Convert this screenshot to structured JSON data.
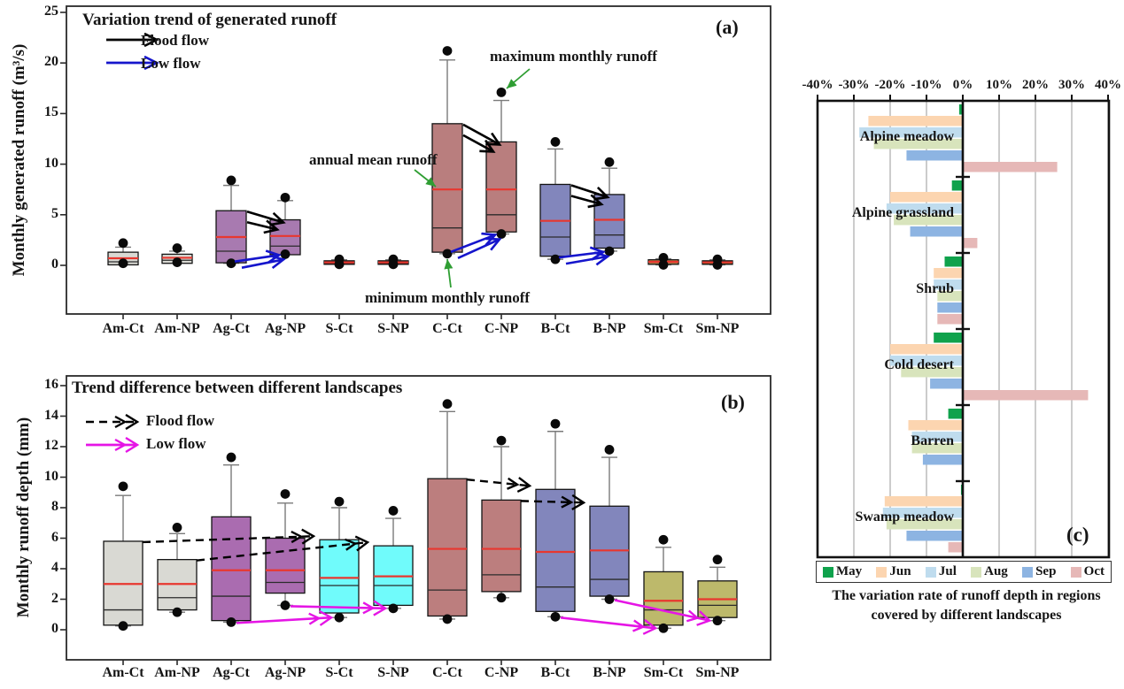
{
  "chart_data": [
    {
      "id": "a",
      "type": "boxplot",
      "panel_label": "(a)",
      "title": "Variation trend of generated runoff",
      "ylabel": "Monthly generated runoff (m³/s)",
      "ylim": [
        -4.8,
        25.5
      ],
      "yticks": [
        0,
        5,
        10,
        15,
        20,
        25
      ],
      "legend": {
        "flood": "Flood flow",
        "low": "Low flow"
      },
      "legend_colors": {
        "flood": "#000000",
        "low": "#1515cc"
      },
      "annotations": {
        "max": "maximum monthly runoff",
        "mean": "annual mean runoff",
        "min": "minimum monthly runoff"
      },
      "categories": [
        "Am-Ct",
        "Am-NP",
        "Ag-Ct",
        "Ag-NP",
        "S-Ct",
        "S-NP",
        "C-Ct",
        "C-NP",
        "B-Ct",
        "B-NP",
        "Sm-Ct",
        "Sm-NP"
      ],
      "boxes": [
        {
          "cat": "Am-Ct",
          "color": "#d9d9d3",
          "q1": 0.05,
          "median": 0.35,
          "mean": 0.7,
          "q3": 1.3,
          "whisker_high": 1.8,
          "dot_high": 2.2,
          "dot_low": 0.2
        },
        {
          "cat": "Am-NP",
          "color": "#d9d9d3",
          "q1": 0.2,
          "median": 0.5,
          "mean": 0.75,
          "q3": 1.1,
          "whisker_high": 1.4,
          "dot_high": 1.7,
          "dot_low": 0.3
        },
        {
          "cat": "Ag-Ct",
          "color": "#a87ab0",
          "q1": 0.25,
          "median": 1.4,
          "mean": 2.8,
          "q3": 5.4,
          "whisker_high": 7.9,
          "dot_high": 8.4,
          "dot_low": 0.2
        },
        {
          "cat": "Ag-NP",
          "color": "#a87ab0",
          "q1": 1.05,
          "median": 1.9,
          "mean": 2.9,
          "q3": 4.5,
          "whisker_high": 6.4,
          "dot_high": 6.7,
          "dot_low": 1.1
        },
        {
          "cat": "S-Ct",
          "color": "#8f1f1f",
          "q1": 0.1,
          "median": 0.25,
          "mean": 0.3,
          "q3": 0.45,
          "whisker_high": 0.55,
          "dot_high": 0.6,
          "dot_low": 0.1
        },
        {
          "cat": "S-NP",
          "color": "#8f1f1f",
          "q1": 0.1,
          "median": 0.25,
          "mean": 0.3,
          "q3": 0.45,
          "whisker_high": 0.55,
          "dot_high": 0.6,
          "dot_low": 0.1
        },
        {
          "cat": "C-Ct",
          "color": "#b97e7e",
          "q1": 1.3,
          "median": 3.7,
          "mean": 7.5,
          "q3": 14.0,
          "whisker_high": 20.3,
          "dot_high": 21.2,
          "dot_low": 1.15
        },
        {
          "cat": "C-NP",
          "color": "#b97e7e",
          "q1": 3.3,
          "median": 5.0,
          "mean": 7.5,
          "q3": 12.2,
          "whisker_high": 16.3,
          "dot_high": 17.1,
          "dot_low": 3.1
        },
        {
          "cat": "B-Ct",
          "color": "#8286bc",
          "q1": 0.9,
          "median": 2.8,
          "mean": 4.4,
          "q3": 8.0,
          "whisker_high": 11.5,
          "dot_high": 12.2,
          "dot_low": 0.6
        },
        {
          "cat": "B-NP",
          "color": "#8286bc",
          "q1": 1.7,
          "median": 3.0,
          "mean": 4.5,
          "q3": 7.0,
          "whisker_high": 9.6,
          "dot_high": 10.2,
          "dot_low": 1.4
        },
        {
          "cat": "Sm-Ct",
          "color": "#d29650",
          "q1": 0.1,
          "median": 0.3,
          "mean": 0.35,
          "q3": 0.55,
          "whisker_high": 0.65,
          "dot_high": 0.75,
          "dot_low": 0.05
        },
        {
          "cat": "Sm-NP",
          "color": "#8d5524",
          "q1": 0.1,
          "median": 0.3,
          "mean": 0.3,
          "q3": 0.45,
          "whisker_high": 0.55,
          "dot_high": 0.6,
          "dot_low": 0.05
        }
      ],
      "flood_arrows": [
        [
          "Ag-Ct",
          "Ag-NP"
        ],
        [
          "C-Ct",
          "C-NP"
        ],
        [
          "B-Ct",
          "B-NP"
        ]
      ],
      "low_arrows": [
        [
          "Ag-Ct",
          "Ag-NP"
        ],
        [
          "C-Ct",
          "C-NP"
        ],
        [
          "B-Ct",
          "B-NP"
        ]
      ]
    },
    {
      "id": "b",
      "type": "boxplot",
      "panel_label": "(b)",
      "title": "Trend difference between different landscapes",
      "ylabel": "Monthly runoff depth (mm)",
      "ylim": [
        -2,
        16.6
      ],
      "yticks": [
        0,
        2,
        4,
        6,
        8,
        10,
        12,
        14,
        16
      ],
      "legend": {
        "flood": "Flood flow",
        "low": "Low flow"
      },
      "legend_colors": {
        "flood": "#000000",
        "low": "#e515e5"
      },
      "categories": [
        "Am-Ct",
        "Am-NP",
        "Ag-Ct",
        "Ag-NP",
        "S-Ct",
        "S-NP",
        "C-Ct",
        "C-NP",
        "B-Ct",
        "B-NP",
        "Sm-Ct",
        "Sm-NP"
      ],
      "boxes": [
        {
          "cat": "Am-Ct",
          "color": "#d9d9d3",
          "q1": 0.3,
          "median": 1.3,
          "mean": 3.0,
          "q3": 5.8,
          "whisker_high": 8.8,
          "dot_high": 9.4,
          "dot_low": 0.25
        },
        {
          "cat": "Am-NP",
          "color": "#d9d9d3",
          "q1": 1.3,
          "median": 2.1,
          "mean": 3.0,
          "q3": 4.6,
          "whisker_high": 6.3,
          "dot_high": 6.7,
          "dot_low": 1.15
        },
        {
          "cat": "Ag-Ct",
          "color": "#aa6cb0",
          "q1": 0.6,
          "median": 2.2,
          "mean": 3.9,
          "q3": 7.4,
          "whisker_high": 10.8,
          "dot_high": 11.3,
          "dot_low": 0.5
        },
        {
          "cat": "Ag-NP",
          "color": "#aa6cb0",
          "q1": 2.4,
          "median": 3.1,
          "mean": 3.9,
          "q3": 6.0,
          "whisker_high": 8.3,
          "dot_high": 8.9,
          "dot_low": 1.6
        },
        {
          "cat": "S-Ct",
          "color": "#70fbfb",
          "q1": 1.1,
          "median": 2.9,
          "mean": 3.4,
          "q3": 5.9,
          "whisker_high": 8.0,
          "dot_high": 8.4,
          "dot_low": 0.8
        },
        {
          "cat": "S-NP",
          "color": "#70fbfb",
          "q1": 1.6,
          "median": 2.9,
          "mean": 3.5,
          "q3": 5.5,
          "whisker_high": 7.3,
          "dot_high": 7.8,
          "dot_low": 1.4
        },
        {
          "cat": "C-Ct",
          "color": "#bc7e7e",
          "q1": 0.9,
          "median": 2.6,
          "mean": 5.3,
          "q3": 9.9,
          "whisker_high": 14.3,
          "dot_high": 14.8,
          "dot_low": 0.7
        },
        {
          "cat": "C-NP",
          "color": "#bc7e7e",
          "q1": 2.5,
          "median": 3.6,
          "mean": 5.3,
          "q3": 8.5,
          "whisker_high": 12.0,
          "dot_high": 12.4,
          "dot_low": 2.1
        },
        {
          "cat": "B-Ct",
          "color": "#8286bc",
          "q1": 1.2,
          "median": 2.8,
          "mean": 5.1,
          "q3": 9.2,
          "whisker_high": 13.0,
          "dot_high": 13.5,
          "dot_low": 0.85
        },
        {
          "cat": "B-NP",
          "color": "#8286bc",
          "q1": 2.2,
          "median": 3.3,
          "mean": 5.2,
          "q3": 8.1,
          "whisker_high": 11.3,
          "dot_high": 11.8,
          "dot_low": 2.0
        },
        {
          "cat": "Sm-Ct",
          "color": "#bdb96b",
          "q1": 0.3,
          "median": 1.3,
          "mean": 1.9,
          "q3": 3.8,
          "whisker_high": 5.4,
          "dot_high": 5.9,
          "dot_low": 0.1
        },
        {
          "cat": "Sm-NP",
          "color": "#bdb96b",
          "q1": 0.8,
          "median": 1.6,
          "mean": 2.0,
          "q3": 3.2,
          "whisker_high": 4.1,
          "dot_high": 4.6,
          "dot_low": 0.6
        }
      ],
      "flood_arrows": [
        [
          "Am-Ct",
          "S-Ct"
        ],
        [
          "Am-NP",
          "S-NP"
        ],
        [
          "C-Ct",
          "B-Ct"
        ],
        [
          "C-NP",
          "B-NP"
        ]
      ],
      "low_arrows": [
        [
          "Ag-Ct",
          "S-Ct"
        ],
        [
          "Ag-NP",
          "S-NP"
        ],
        [
          "B-Ct",
          "Sm-Ct"
        ],
        [
          "B-NP",
          "Sm-NP"
        ]
      ]
    },
    {
      "id": "c",
      "type": "bar",
      "orientation": "horizontal",
      "panel_label": "(c)",
      "caption": "The variation rate of runoff depth in regions covered by different landscapes",
      "xlim": [
        -40,
        40
      ],
      "xlabel_ticks": [
        "-40%",
        "-30%",
        "-20%",
        "-10%",
        "0%",
        "10%",
        "20%",
        "30%",
        "40%"
      ],
      "xtick_values": [
        -40,
        -30,
        -20,
        -10,
        0,
        10,
        20,
        30,
        40
      ],
      "categories": [
        "Alpine meadow",
        "Alpine grassland",
        "Shrub",
        "Cold desert",
        "Barren",
        "Swamp meadow"
      ],
      "series": [
        {
          "name": "May",
          "color": "#0fa24c",
          "values": [
            -1,
            -3,
            -5,
            -8,
            -4,
            -0.5
          ]
        },
        {
          "name": "Jun",
          "color": "#fcd5b0",
          "values": [
            -26,
            -20,
            -8,
            -20,
            -15,
            -21.5
          ]
        },
        {
          "name": "Jul",
          "color": "#bfdcee",
          "values": [
            -28.5,
            -21,
            -8,
            -20,
            -14,
            -22
          ]
        },
        {
          "name": "Aug",
          "color": "#d8e4bc",
          "values": [
            -24.5,
            -19,
            -7,
            -17,
            -14,
            -21
          ]
        },
        {
          "name": "Sep",
          "color": "#8db4e2",
          "values": [
            -15.5,
            -14.5,
            -7,
            -9,
            -11,
            -15.5
          ]
        },
        {
          "name": "Oct",
          "color": "#e6b8b7",
          "values": [
            26,
            4,
            -7,
            34.5,
            0,
            -4
          ]
        }
      ]
    }
  ]
}
